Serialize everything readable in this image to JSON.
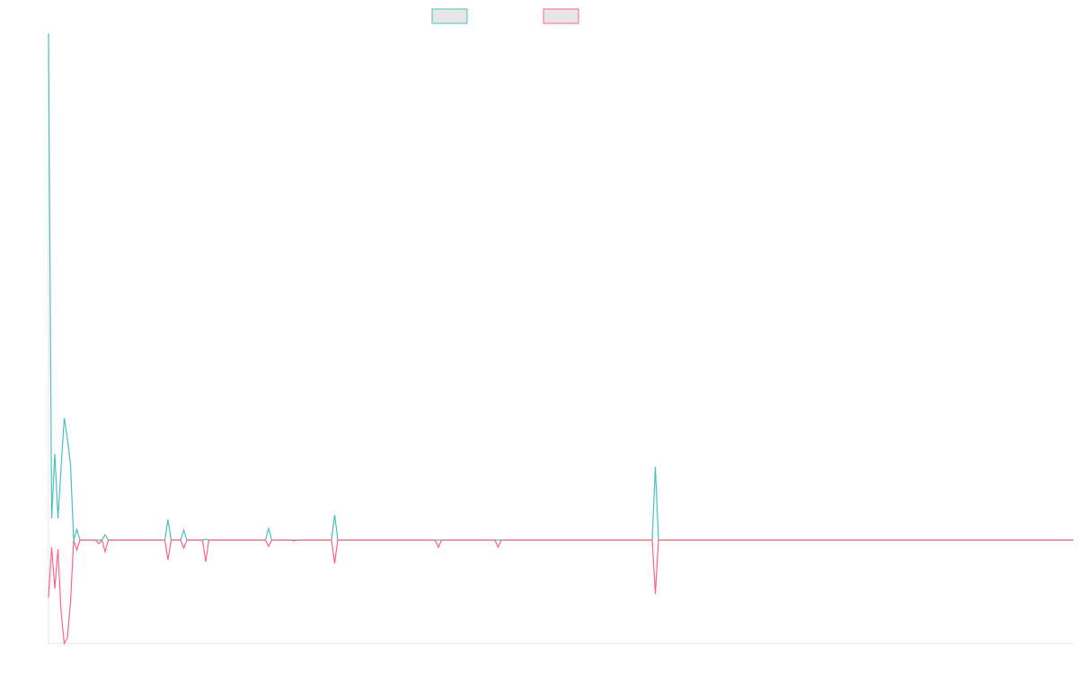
{
  "chart_data": {
    "type": "line",
    "x": [
      0,
      1,
      2,
      3,
      4,
      5,
      6,
      7,
      8,
      9,
      10,
      15,
      16,
      17,
      18,
      19,
      37,
      38,
      39,
      42,
      43,
      44,
      49,
      50,
      51,
      69,
      70,
      71,
      77,
      78,
      79,
      90,
      91,
      92,
      123,
      124,
      125,
      142,
      143,
      144,
      192,
      193,
      194,
      326
    ],
    "series": [
      {
        "color": "#4bc0c0",
        "values": [
          564,
          24,
          96,
          24,
          80,
          136,
          113,
          84,
          0,
          12,
          0,
          0,
          0,
          0,
          6,
          0,
          0,
          23,
          0,
          0,
          11,
          0,
          0,
          1,
          0,
          0,
          13,
          0,
          0,
          0,
          0,
          0,
          28,
          0,
          0,
          0,
          0,
          0,
          0,
          0,
          0,
          82,
          0,
          0
        ]
      },
      {
        "color": "#ff6384",
        "values": [
          -64,
          -8,
          -54,
          -10,
          -80,
          -115,
          -109,
          -69,
          0,
          -11,
          0,
          0,
          -4,
          0,
          -13,
          0,
          0,
          -22,
          0,
          0,
          -9,
          0,
          0,
          -24,
          0,
          0,
          -7,
          0,
          0,
          -1,
          0,
          0,
          -26,
          0,
          0,
          -8,
          0,
          0,
          -8,
          0,
          0,
          -60,
          0,
          0
        ]
      }
    ],
    "xlim": [
      0,
      326
    ],
    "ylim": [
      -115,
      564
    ]
  }
}
